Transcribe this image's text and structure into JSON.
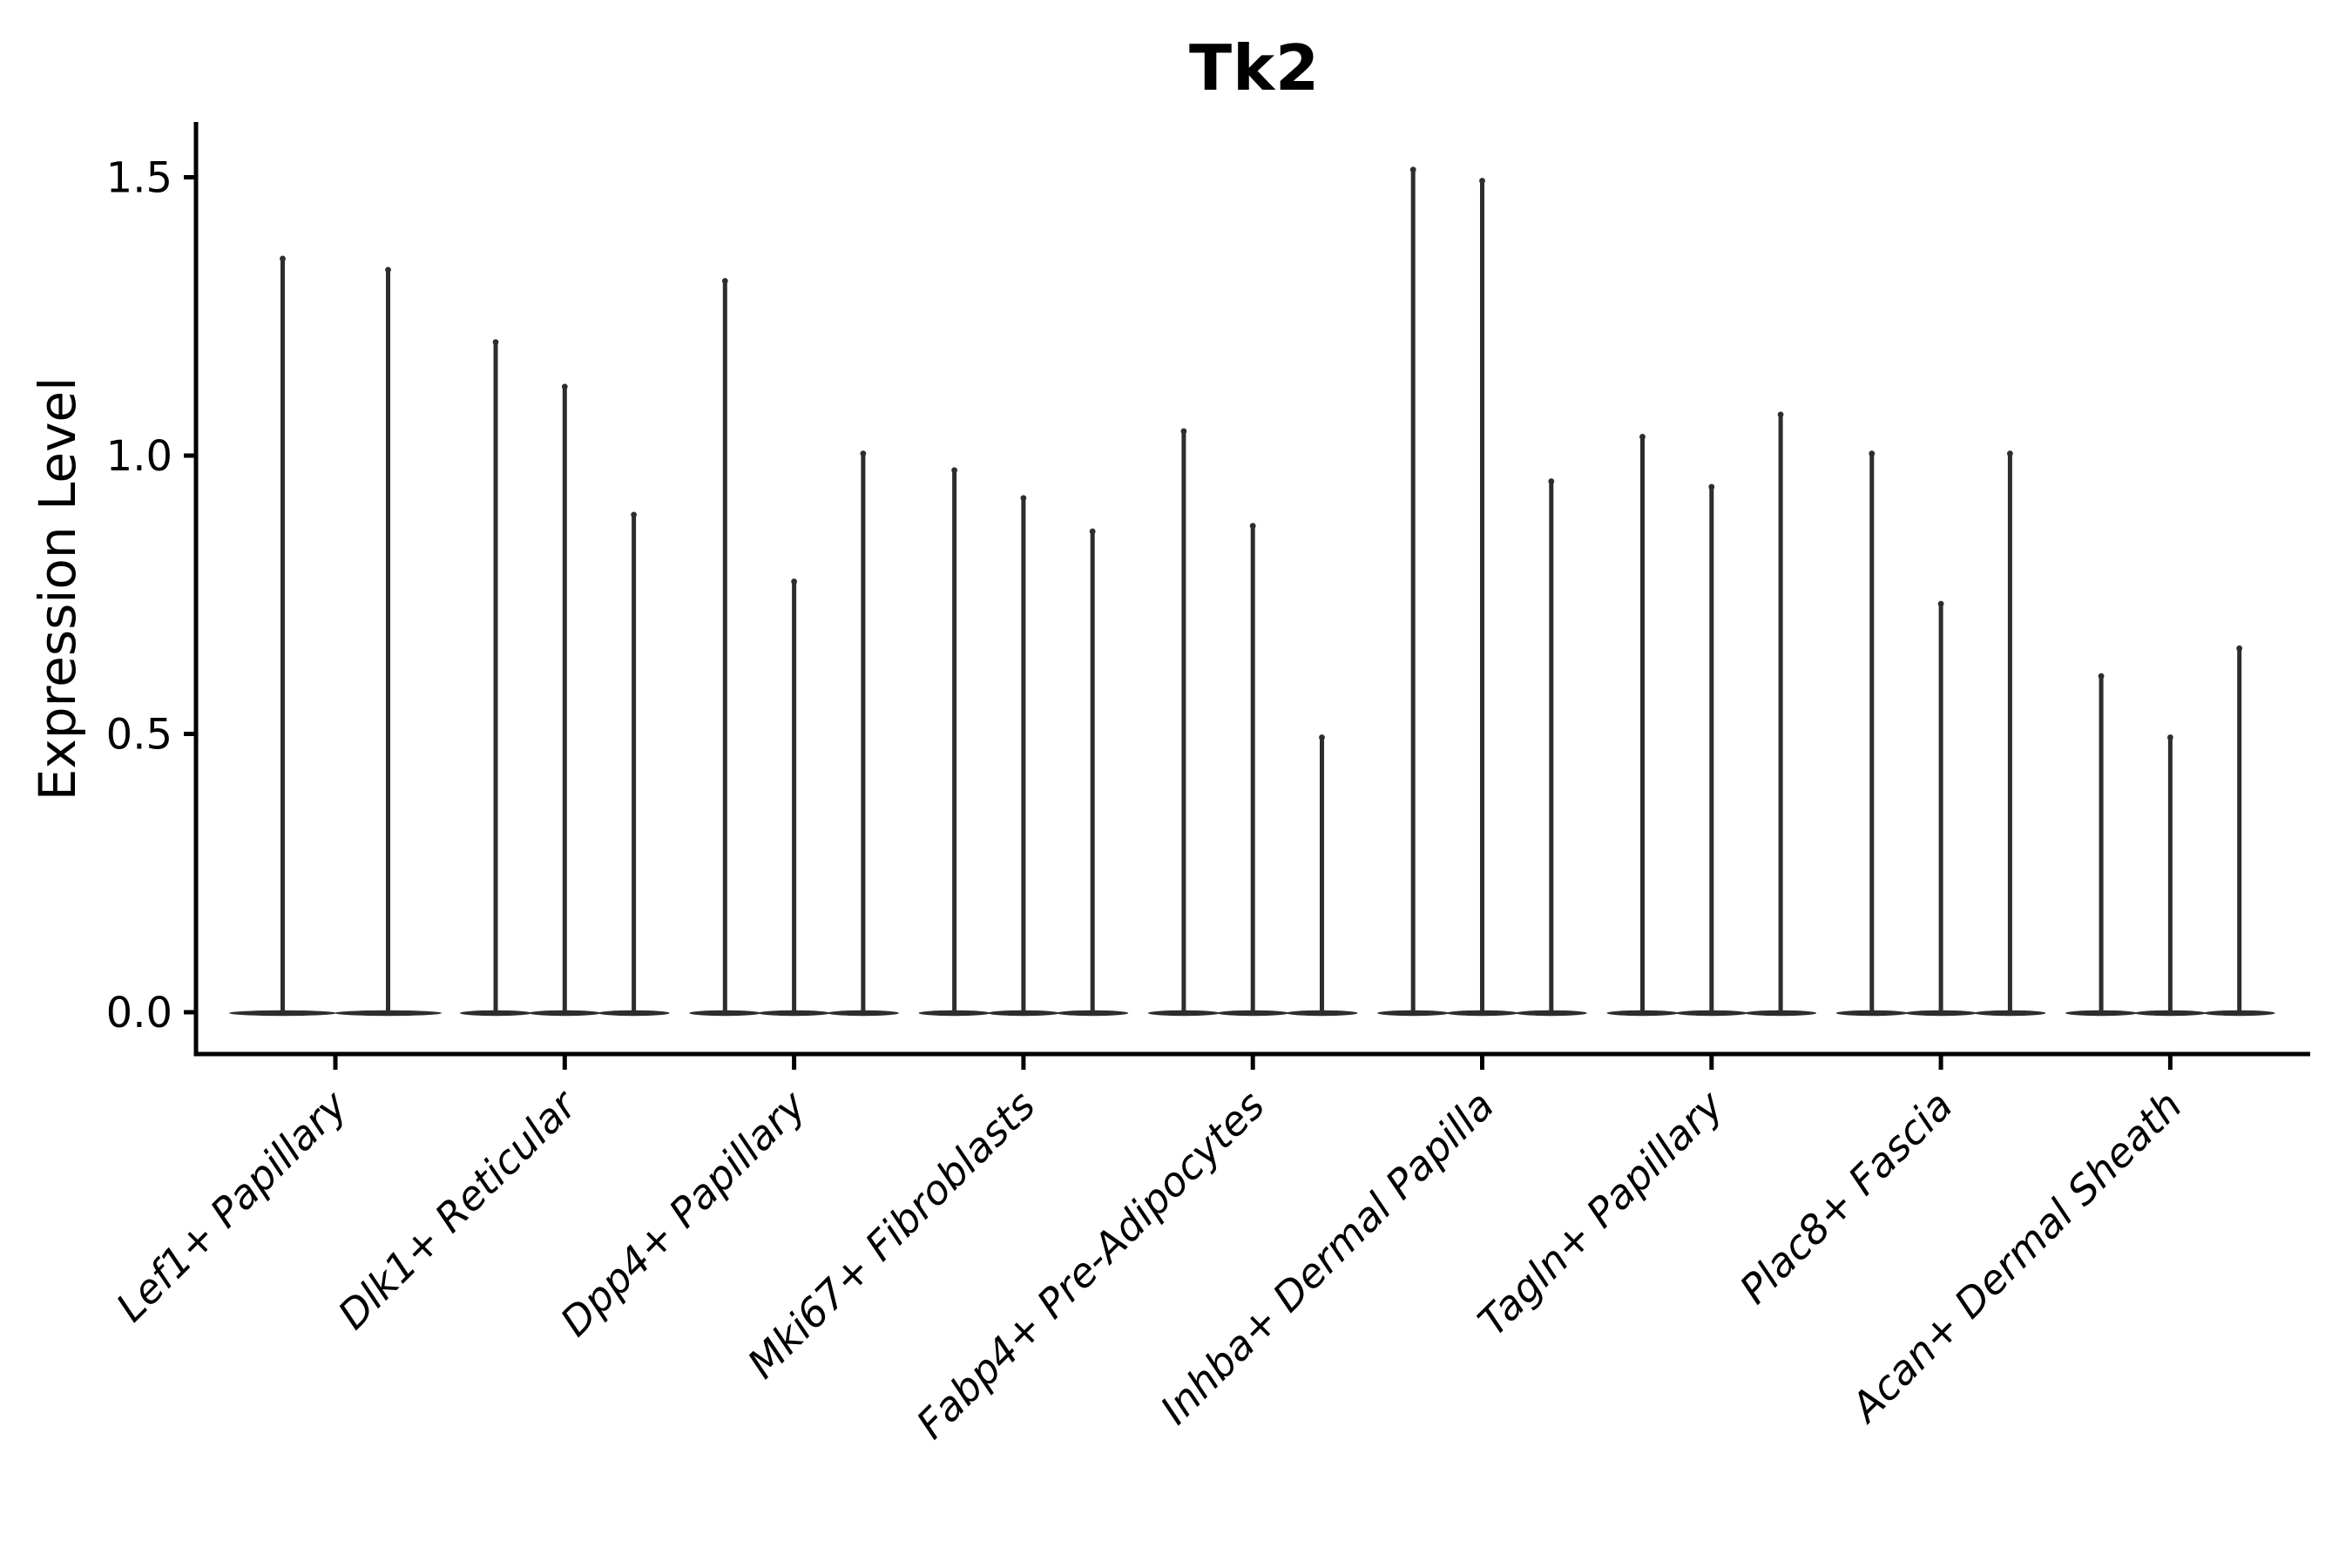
{
  "chart_data": {
    "type": "violin",
    "title": "Tk2",
    "ylabel": "Expression Level",
    "xlabel": "",
    "grid": false,
    "legend": null,
    "background_color": "#ffffff",
    "violin_color": "#2d2d2d",
    "axis_color": "#000000",
    "ylim": [
      -0.08,
      1.6
    ],
    "ytick_labels": [
      "0.0",
      "0.5",
      "1.0",
      "1.5"
    ],
    "ytick_values": [
      0.0,
      0.5,
      1.0,
      1.5
    ],
    "categories": [
      "Lef1+ Papillary",
      "Dlk1+ Reticular",
      "Dpp4+ Papillary",
      "Mki67+ Fibroblasts",
      "Fabp4+ Pre-Adipocytes",
      "Inhba+ Dermal Papilla",
      "Tagln+ Papillary",
      "Plac8+ Fascia",
      "Acan+ Dermal Sheath"
    ],
    "description": "Each cluster shows 2-3 extremely thin violins: a flat dense base at expression 0 with a hairline spike reaching the listed maximum expression value.",
    "series": [
      {
        "category": "Lef1+ Papillary",
        "violin_max_values": [
          1.36,
          1.34
        ]
      },
      {
        "category": "Dlk1+ Reticular",
        "violin_max_values": [
          1.21,
          1.13,
          0.9
        ]
      },
      {
        "category": "Dpp4+ Papillary",
        "violin_max_values": [
          1.32,
          0.78,
          1.01
        ]
      },
      {
        "category": "Mki67+ Fibroblasts",
        "violin_max_values": [
          0.98,
          0.93,
          0.87
        ]
      },
      {
        "category": "Fabp4+ Pre-Adipocytes",
        "violin_max_values": [
          1.05,
          0.88,
          0.5
        ]
      },
      {
        "category": "Inhba+ Dermal Papilla",
        "violin_max_values": [
          1.52,
          1.5,
          0.96
        ]
      },
      {
        "category": "Tagln+ Papillary",
        "violin_max_values": [
          1.04,
          0.95,
          1.08
        ]
      },
      {
        "category": "Plac8+ Fascia",
        "violin_max_values": [
          1.01,
          0.74,
          1.01
        ]
      },
      {
        "category": "Acan+ Dermal Sheath",
        "violin_max_values": [
          0.61,
          0.5,
          0.66
        ]
      }
    ]
  }
}
